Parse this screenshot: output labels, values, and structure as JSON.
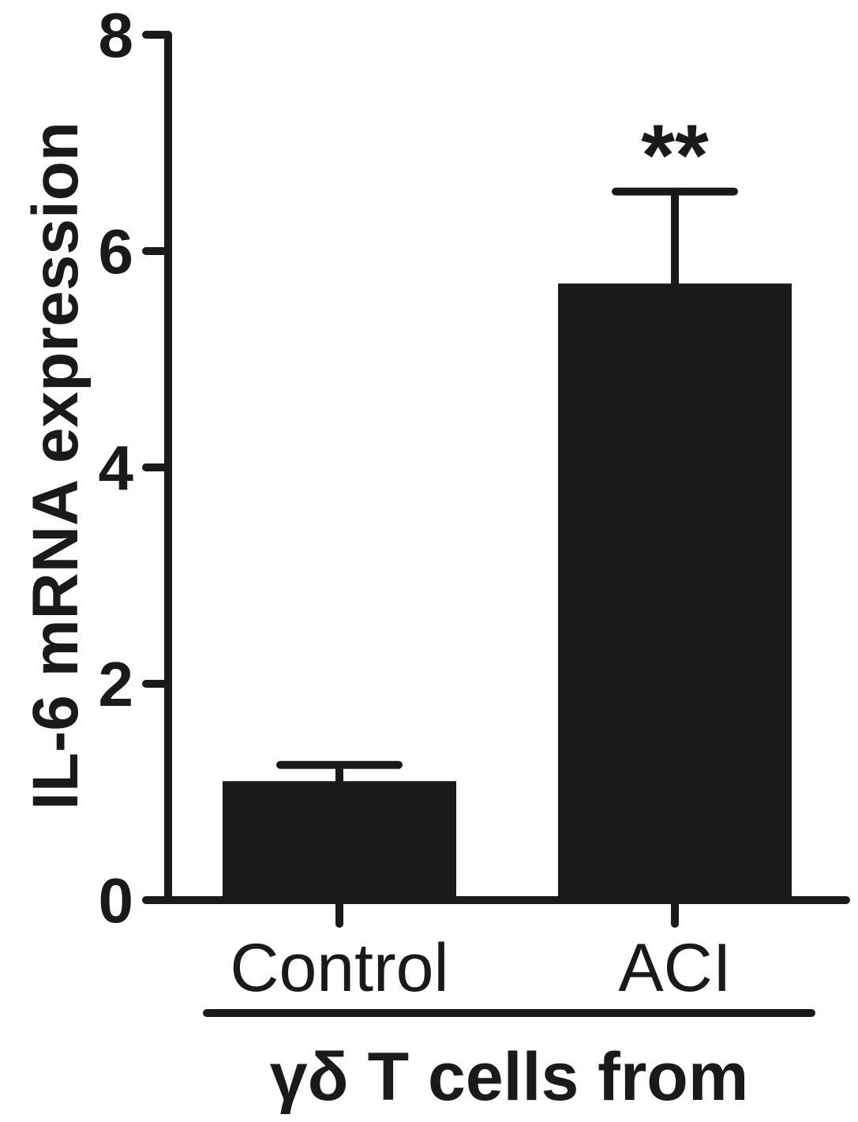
{
  "chart_data": {
    "type": "bar",
    "title": "",
    "ylabel": "IL-6 mRNA expression",
    "xlabel": "γδ T cells from",
    "ylim": [
      0,
      8
    ],
    "yticks": [
      0,
      2,
      4,
      6,
      8
    ],
    "ytick_labels": [
      "0",
      "2",
      "4",
      "6",
      "8"
    ],
    "grid": false,
    "categories": [
      "Control",
      "ACI"
    ],
    "values": [
      1.1,
      5.7
    ],
    "errors": [
      0.15,
      0.85
    ],
    "annotations": [
      "",
      "**"
    ],
    "bar_color": "#1a1a1a"
  }
}
